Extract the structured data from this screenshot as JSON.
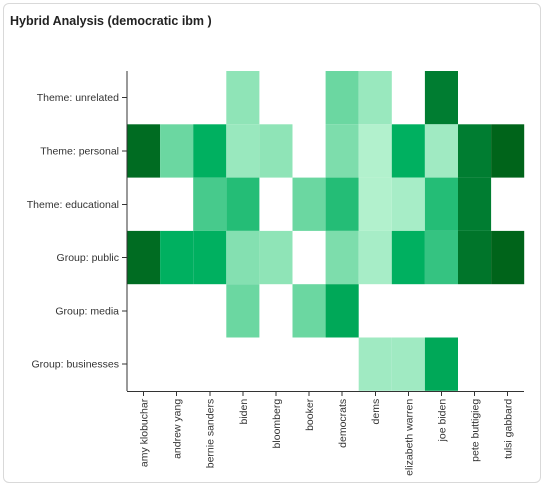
{
  "panel": {
    "title": "Hybrid Analysis (democratic ibm )"
  },
  "colors": {
    "scale": [
      "#c4f7d8",
      "#00641a"
    ],
    "axis": "#333333"
  },
  "chart_data": {
    "type": "heatmap",
    "title": "Hybrid Analysis (democratic ibm )",
    "xlabel": "",
    "ylabel": "",
    "grid": false,
    "legend": "none",
    "x": [
      "amy klobuchar",
      "andrew yang",
      "bernie sanders",
      "biden",
      "bloomberg",
      "booker",
      "democrats",
      "dems",
      "elizabeth warren",
      "joe biden",
      "pete buttigieg",
      "tulsi gabbard"
    ],
    "y": [
      "Theme: unrelated",
      "Theme: personal",
      "Theme: educational",
      "Group: public",
      "Group: media",
      "Group: businesses"
    ],
    "values": [
      [
        null,
        null,
        null,
        0.15,
        null,
        null,
        0.25,
        0.12,
        null,
        0.85,
        null,
        null
      ],
      [
        0.95,
        0.25,
        0.55,
        0.12,
        0.15,
        null,
        0.2,
        0.05,
        0.55,
        0.1,
        0.85,
        1.0
      ],
      [
        null,
        null,
        0.35,
        0.45,
        null,
        0.25,
        0.45,
        0.05,
        0.08,
        0.45,
        0.85,
        null
      ],
      [
        0.95,
        0.55,
        0.55,
        0.18,
        0.15,
        null,
        0.2,
        0.08,
        0.55,
        0.4,
        0.9,
        1.0
      ],
      [
        null,
        null,
        null,
        0.25,
        null,
        0.25,
        0.6,
        null,
        null,
        null,
        null,
        null
      ],
      [
        null,
        null,
        null,
        null,
        null,
        null,
        null,
        0.1,
        0.1,
        0.6,
        null,
        null
      ]
    ]
  }
}
